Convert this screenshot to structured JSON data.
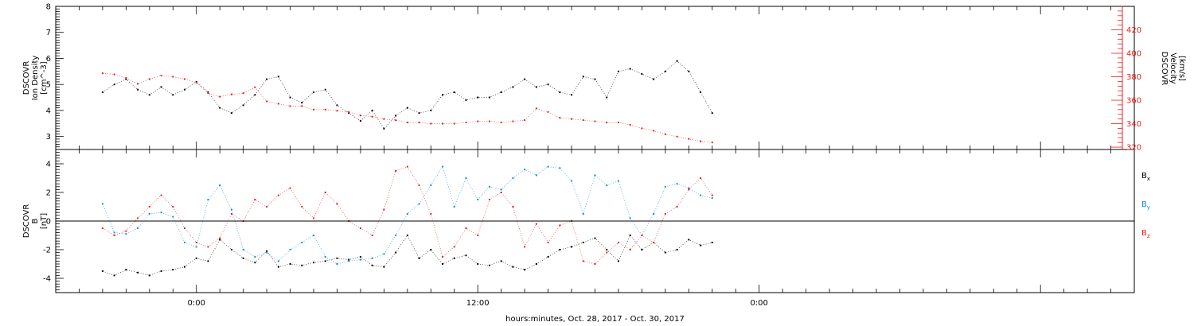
{
  "chart_data": [
    {
      "type": "scatter",
      "panel": "top",
      "ylabel_left": [
        "DSCOVR",
        "Ion Density",
        "[cm^-3]"
      ],
      "ylabel_right": [
        "DSCOVR",
        "Velocity",
        "[km/s]"
      ],
      "ylim_left": [
        2.5,
        8.0
      ],
      "yticks_left": [
        3,
        4,
        5,
        6,
        7,
        8
      ],
      "ylim_right": [
        318,
        440
      ],
      "yticks_right": [
        320,
        340,
        360,
        380,
        400,
        420
      ],
      "series": [
        {
          "name": "Ion Density",
          "axis": "left",
          "color": "#000000",
          "x": [
            -4.0,
            -3.5,
            -3.0,
            -2.5,
            -2.0,
            -1.5,
            -1.0,
            -0.5,
            0.0,
            0.5,
            1.0,
            1.5,
            2.0,
            2.5,
            3.0,
            3.5,
            4.0,
            4.5,
            5.0,
            5.5,
            6.0,
            6.5,
            7.0,
            7.5,
            8.0,
            8.5,
            9.0,
            9.5,
            10.0,
            10.5,
            11.0,
            11.5,
            12.0,
            12.5,
            13.0,
            13.5,
            14.0,
            14.5,
            15.0,
            15.5,
            16.0,
            16.5,
            17.0,
            17.5,
            18.0,
            18.5,
            19.0,
            19.5,
            20.0,
            20.5,
            21.0,
            21.5,
            22.0
          ],
          "y": [
            4.7,
            5.0,
            5.2,
            4.8,
            4.6,
            4.9,
            4.6,
            4.8,
            5.1,
            4.7,
            4.1,
            3.9,
            4.2,
            4.6,
            5.2,
            5.3,
            4.5,
            4.3,
            4.7,
            4.8,
            4.2,
            3.9,
            3.6,
            4.0,
            3.3,
            3.8,
            4.1,
            3.9,
            4.0,
            4.6,
            4.7,
            4.4,
            4.5,
            4.5,
            4.7,
            4.9,
            5.2,
            4.9,
            5.0,
            4.7,
            4.6,
            5.3,
            5.2,
            4.5,
            5.5,
            5.6,
            5.4,
            5.2,
            5.5,
            5.9,
            5.5,
            4.7,
            3.9
          ]
        },
        {
          "name": "Velocity",
          "axis": "right",
          "color": "#e8201c",
          "x": [
            -4.0,
            -3.5,
            -3.0,
            -2.5,
            -2.0,
            -1.5,
            -1.0,
            -0.5,
            0.0,
            0.5,
            1.0,
            1.5,
            2.0,
            2.5,
            3.0,
            3.5,
            4.0,
            4.5,
            5.0,
            5.5,
            6.0,
            6.5,
            7.0,
            7.5,
            8.0,
            8.5,
            9.0,
            9.5,
            10.0,
            10.5,
            11.0,
            11.5,
            12.0,
            12.5,
            13.0,
            13.5,
            14.0,
            14.5,
            15.0,
            15.5,
            16.0,
            16.5,
            17.0,
            17.5,
            18.0,
            18.5,
            19.0,
            19.5,
            20.0,
            20.5,
            21.0,
            21.5,
            22.0
          ],
          "y": [
            383,
            382,
            379,
            374,
            378,
            381,
            380,
            378,
            375,
            366,
            363,
            365,
            366,
            371,
            359,
            357,
            355,
            355,
            352,
            352,
            351,
            350,
            347,
            346,
            344,
            343,
            341,
            341,
            340,
            340,
            340,
            341,
            342,
            342,
            341,
            342,
            343,
            353,
            350,
            345,
            344,
            343,
            342,
            341,
            341,
            339,
            336,
            334,
            331,
            329,
            327,
            325,
            324
          ]
        }
      ]
    },
    {
      "type": "scatter",
      "panel": "bottom",
      "ylabel_left": [
        "DSCOVR",
        "B",
        "[nT]"
      ],
      "ylim": [
        -5,
        5
      ],
      "yticks": [
        -4,
        -2,
        0,
        2,
        4
      ],
      "zero_line": true,
      "legend_placement": "right",
      "series": [
        {
          "name": "Bx",
          "color": "#000000",
          "x": [
            -4.0,
            -3.5,
            -3.0,
            -2.5,
            -2.0,
            -1.5,
            -1.0,
            -0.5,
            0.0,
            0.5,
            1.0,
            1.5,
            2.0,
            2.5,
            3.0,
            3.5,
            4.0,
            4.5,
            5.0,
            5.5,
            6.0,
            6.5,
            7.0,
            7.5,
            8.0,
            8.5,
            9.0,
            9.5,
            10.0,
            10.5,
            11.0,
            11.5,
            12.0,
            12.5,
            13.0,
            13.5,
            14.0,
            14.5,
            15.0,
            15.5,
            16.0,
            16.5,
            17.0,
            17.5,
            18.0,
            18.5,
            19.0,
            19.5,
            20.0,
            20.5,
            21.0,
            21.5,
            22.0
          ],
          "y": [
            -3.5,
            -3.8,
            -3.4,
            -3.6,
            -3.8,
            -3.5,
            -3.4,
            -3.2,
            -2.6,
            -2.8,
            -1.3,
            -2.0,
            -2.6,
            -2.9,
            -2.1,
            -3.2,
            -3.0,
            -3.1,
            -2.9,
            -2.8,
            -2.6,
            -2.7,
            -2.5,
            -3.1,
            -3.2,
            -2.2,
            -1.0,
            -2.6,
            -2.0,
            -3.0,
            -2.6,
            -2.4,
            -3.0,
            -3.1,
            -2.8,
            -3.2,
            -3.4,
            -3.0,
            -2.5,
            -2.0,
            -1.8,
            -1.5,
            -1.2,
            -2.0,
            -2.8,
            -1.0,
            -2.0,
            -1.5,
            -2.2,
            -2.0,
            -1.3,
            -1.7,
            -1.5
          ]
        },
        {
          "name": "By",
          "color": "#0a8ee0",
          "x": [
            -4.0,
            -3.5,
            -3.0,
            -2.5,
            -2.0,
            -1.5,
            -1.0,
            -0.5,
            0.0,
            0.5,
            1.0,
            1.5,
            2.0,
            2.5,
            3.0,
            3.5,
            4.0,
            4.5,
            5.0,
            5.5,
            6.0,
            6.5,
            7.0,
            7.5,
            8.0,
            8.5,
            9.0,
            9.5,
            10.0,
            10.5,
            11.0,
            11.5,
            12.0,
            12.5,
            13.0,
            13.5,
            14.0,
            14.5,
            15.0,
            15.5,
            16.0,
            16.5,
            17.0,
            17.5,
            18.0,
            18.5,
            19.0,
            19.5,
            20.0,
            20.5,
            21.0,
            21.5,
            22.0
          ],
          "y": [
            1.2,
            -0.8,
            -0.9,
            -0.5,
            0.5,
            0.6,
            0.3,
            -1.5,
            -1.8,
            1.5,
            2.5,
            0.8,
            -2.0,
            -2.5,
            -2.2,
            -2.8,
            -2.0,
            -1.5,
            -1.0,
            -2.5,
            -3.0,
            -2.8,
            -2.7,
            -2.6,
            -2.3,
            -1.0,
            0.5,
            1.2,
            2.5,
            3.8,
            1.0,
            3.0,
            1.5,
            2.4,
            2.2,
            3.0,
            3.6,
            3.2,
            3.8,
            3.7,
            2.8,
            0.5,
            3.2,
            2.5,
            2.8,
            0.2,
            -1.0,
            0.5,
            2.4,
            2.6,
            2.3,
            1.8,
            1.6
          ]
        },
        {
          "name": "Bz",
          "color": "#e8201c",
          "x": [
            -4.0,
            -3.5,
            -3.0,
            -2.5,
            -2.0,
            -1.5,
            -1.0,
            -0.5,
            0.0,
            0.5,
            1.0,
            1.5,
            2.0,
            2.5,
            3.0,
            3.5,
            4.0,
            4.5,
            5.0,
            5.5,
            6.0,
            6.5,
            7.0,
            7.5,
            8.0,
            8.5,
            9.0,
            9.5,
            10.0,
            10.5,
            11.0,
            11.5,
            12.0,
            12.5,
            13.0,
            13.5,
            14.0,
            14.5,
            15.0,
            15.5,
            16.0,
            16.5,
            17.0,
            17.5,
            18.0,
            18.5,
            19.0,
            19.5,
            20.0,
            20.5,
            21.0,
            21.5,
            22.0
          ],
          "y": [
            -0.5,
            -1.0,
            -0.7,
            0.2,
            1.0,
            1.8,
            1.0,
            -0.5,
            -1.5,
            -1.8,
            -1.2,
            0.5,
            0.0,
            1.5,
            1.0,
            1.8,
            2.3,
            1.0,
            0.2,
            2.0,
            1.2,
            0.0,
            -0.5,
            -1.0,
            0.8,
            3.5,
            3.8,
            2.5,
            0.5,
            -2.5,
            -1.8,
            -0.5,
            -1.0,
            1.5,
            2.0,
            1.0,
            -1.8,
            -0.2,
            -1.5,
            -0.3,
            0.0,
            -2.8,
            -3.0,
            -2.2,
            -1.5,
            -2.0,
            -1.0,
            -1.5,
            0.5,
            1.0,
            2.2,
            3.0,
            1.8
          ]
        }
      ]
    }
  ],
  "x_axis": {
    "label": "hours:minutes, Oct. 28, 2017 - Oct. 30, 2017",
    "xlim_hours": [
      -6.0,
      40.0
    ],
    "ticks": [
      {
        "hours": 0,
        "label": "0:00"
      },
      {
        "hours": 12,
        "label": "12:00"
      },
      {
        "hours": 24,
        "label": "0:00"
      }
    ]
  },
  "legend": [
    {
      "base": "B",
      "sub": "x",
      "color": "#000000"
    },
    {
      "base": "B",
      "sub": "y",
      "color": "#0a8ee0"
    },
    {
      "base": "B",
      "sub": "z",
      "color": "#e8201c"
    }
  ]
}
